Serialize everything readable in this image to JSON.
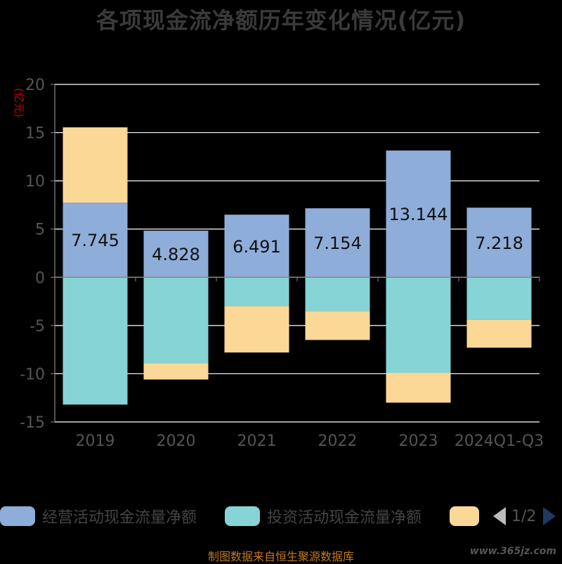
{
  "title": "各项现金流净额历年变化情况(亿元)",
  "source": "制图数据来自恒生聚源数据库",
  "watermark": "www.365jz.com",
  "pager": "1/2",
  "colors": {
    "operating": "#8eadd9",
    "investing": "#86d4d6",
    "financing": "#fcd897",
    "axis": "#888888",
    "grid": "#ffffff",
    "tick": "#555555",
    "unit": "#cc0000"
  },
  "chart_data": {
    "type": "bar",
    "stacked": true,
    "categories": [
      "2019",
      "2020",
      "2021",
      "2022",
      "2023",
      "2024Q1-Q3"
    ],
    "series": [
      {
        "name": "经营活动现金流量净额",
        "color": "#8eadd9",
        "values": [
          7.745,
          4.828,
          6.491,
          7.154,
          13.144,
          7.218
        ],
        "labels": [
          "7.745",
          "4.828",
          "6.491",
          "7.154",
          "13.144",
          "7.218"
        ]
      },
      {
        "name": "投资活动现金流量净额",
        "color": "#86d4d6",
        "values": [
          -13.2,
          -8.9,
          -3.0,
          -3.5,
          -9.9,
          -4.4
        ]
      },
      {
        "color": "#fcd897",
        "values": [
          7.8,
          -1.7,
          -4.8,
          -3.0,
          -3.1,
          -2.9
        ]
      }
    ],
    "ylabel": "(亿元)",
    "ylim": [
      -15,
      20
    ],
    "yticks": [
      -15,
      -10,
      -5,
      0,
      5,
      10,
      15,
      20
    ],
    "grid": true,
    "legend_position": "bottom"
  }
}
